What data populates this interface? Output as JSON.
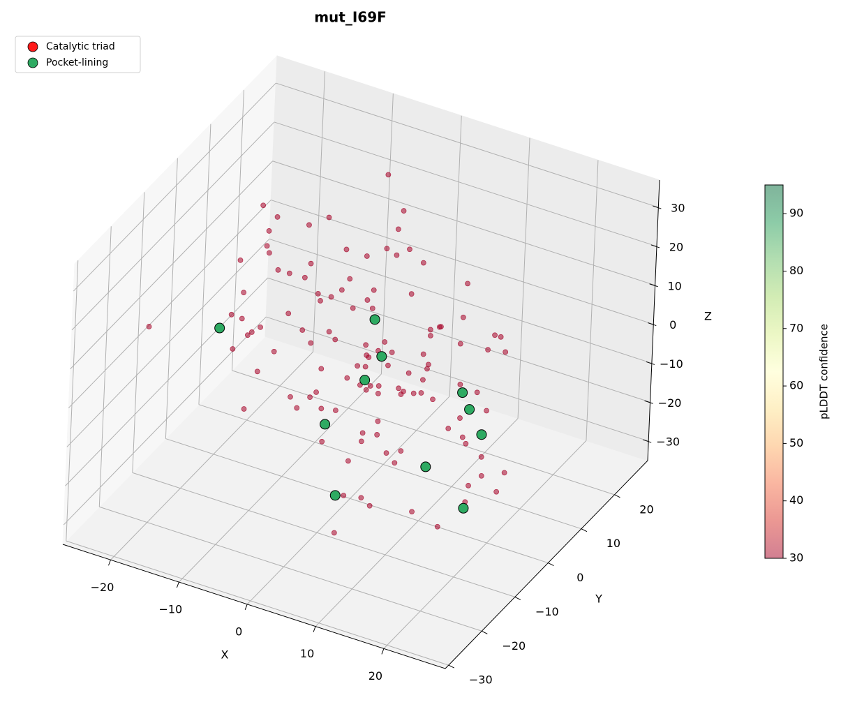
{
  "chart_data": {
    "type": "scatter3d",
    "title": "mut_I69F",
    "xlabel": "X",
    "ylabel": "Y",
    "zlabel": "Z",
    "xlim": [
      -27,
      29
    ],
    "ylim": [
      -31,
      30
    ],
    "zlim": [
      -35,
      37
    ],
    "xticks": [
      {
        "value": -20,
        "label": "−20"
      },
      {
        "value": -10,
        "label": "−10"
      },
      0,
      10,
      20
    ],
    "yticks": [
      {
        "value": -30,
        "label": "−30"
      },
      {
        "value": -20,
        "label": "−20"
      },
      {
        "value": -10,
        "label": "−10"
      },
      0,
      10,
      20
    ],
    "zticks": [
      {
        "value": -30,
        "label": "−30"
      },
      {
        "value": -20,
        "label": "−20"
      },
      {
        "value": -10,
        "label": "−10"
      },
      0,
      10,
      20,
      30
    ],
    "grid": true,
    "legend": "upper left",
    "series": [
      {
        "color": "#a50026",
        "x": [
          -18,
          5,
          12,
          -7,
          20,
          -3,
          9,
          -14,
          2,
          16,
          -10,
          7,
          -21,
          0,
          13,
          -5,
          18,
          -12,
          4,
          -8,
          10,
          -16,
          22,
          -1,
          6,
          -19,
          14,
          -6,
          3,
          -11,
          19,
          -2,
          8,
          -15,
          11,
          -4,
          21,
          -9,
          1,
          15,
          -17,
          6,
          -13,
          9,
          17,
          -7,
          2,
          -20,
          12,
          -3,
          5,
          -10,
          18,
          -6,
          0,
          14,
          -14,
          7,
          -1,
          20,
          -18,
          3,
          11,
          -8,
          16,
          -12,
          4,
          -5,
          9,
          -22,
          13,
          -2,
          19,
          -9,
          6,
          -15,
          1,
          10,
          -4,
          22,
          -11,
          8,
          -16,
          15,
          -7,
          2,
          17,
          -13,
          5,
          -19,
          12,
          -1,
          7,
          -6,
          20,
          -10,
          3,
          14,
          -17,
          9,
          -3,
          18,
          -8,
          0,
          11,
          -14,
          6,
          -20,
          16,
          -5,
          4,
          -12,
          13,
          -2,
          21,
          -9,
          8,
          -15,
          1,
          10
        ],
        "y": [
          3,
          -12,
          8,
          20,
          -5,
          14,
          -18,
          0,
          22,
          -9,
          11,
          -21,
          6,
          -3,
          17,
          -15,
          9,
          -7,
          24,
          2,
          -19,
          13,
          -1,
          19,
          -10,
          5,
          -23,
          16,
          -6,
          10,
          0,
          21,
          -14,
          7,
          -20,
          12,
          -4,
          18,
          -11,
          3,
          15,
          -8,
          23,
          -16,
          4,
          -2,
          11,
          -22,
          7,
          18,
          -13,
          9,
          -6,
          1,
          20,
          -17,
          14,
          -9,
          5,
          -24,
          8,
          16,
          -3,
          22,
          -12,
          6,
          -19,
          13,
          -1,
          9,
          -7,
          19,
          2,
          -15,
          10,
          -5,
          21,
          -11,
          17,
          -2,
          12,
          -20,
          4,
          -8,
          23,
          -14,
          0,
          18,
          -6,
          7,
          -16,
          11,
          -4,
          20,
          -9,
          15,
          -21,
          3,
          8,
          -12,
          22,
          -3,
          13,
          -18,
          6,
          1,
          -10,
          17,
          -7,
          24,
          -1,
          9,
          -13,
          16,
          -5,
          11,
          -22,
          4,
          19,
          -8
        ],
        "z": [
          5,
          -12,
          20,
          -3,
          8,
          -22,
          15,
          1,
          -9,
          26,
          -17,
          10,
          -5,
          24,
          -1,
          13,
          -26,
          7,
          -14,
          19,
          2,
          -8,
          16,
          -20,
          11,
          -4,
          22,
          -13,
          6,
          -24,
          14,
          -2,
          -18,
          9,
          25,
          -11,
          3,
          -7,
          18,
          -15,
          0,
          21,
          -9,
          12,
          -23,
          6,
          -16,
          17,
          -5,
          10,
          -20,
          4,
          27,
          -12,
          8,
          -3,
          15,
          -25,
          11,
          -6,
          23,
          -14,
          1,
          -10,
          19,
          -21,
          7,
          13,
          -2,
          -17,
          9,
          -26,
          16,
          -4,
          3,
          22,
          -11,
          -8,
          12,
          -19,
          -1,
          18,
          -15,
          6,
          24,
          -7,
          -22,
          14,
          2,
          -10,
          20,
          -5,
          10,
          -18,
          0,
          -13,
          25,
          -9,
          17,
          -3,
          8,
          -23,
          13,
          4,
          -16,
          21,
          -6,
          11,
          -27,
          15,
          -12,
          7,
          -4,
          19,
          -8,
          2,
          -20,
          16,
          -14,
          6
        ]
      },
      {
        "name": "Catalytic triad",
        "color": "#ff1a1a",
        "x": [],
        "y": [],
        "z": []
      },
      {
        "name": "Pocket-lining",
        "color": "#2eaa62",
        "x": [
          -15.3,
          -2.1,
          1.4,
          1.4,
          11.0,
          14.4,
          0.5,
          18.6,
          15.3,
          7.0,
          23.3
        ],
        "y": [
          -10,
          10,
          5,
          0,
          10,
          5,
          -10,
          0,
          -10,
          -20,
          -15
        ],
        "z": [
          8.8,
          1.0,
          -2.1,
          -3.8,
          -10.3,
          -8.3,
          -6.9,
          -8.0,
          -9.4,
          -12.7,
          -11.1
        ]
      }
    ],
    "colorbar": {
      "label": "pLDDT confidence",
      "lim": [
        30,
        95
      ],
      "ticks": [
        30,
        40,
        50,
        60,
        70,
        80,
        90
      ],
      "colormap": [
        "#a50026",
        "#d73027",
        "#f46d43",
        "#fdae61",
        "#fee08b",
        "#ffffbf",
        "#d9ef8b",
        "#a6d96a",
        "#66bd63",
        "#1a9850",
        "#006837"
      ]
    }
  }
}
